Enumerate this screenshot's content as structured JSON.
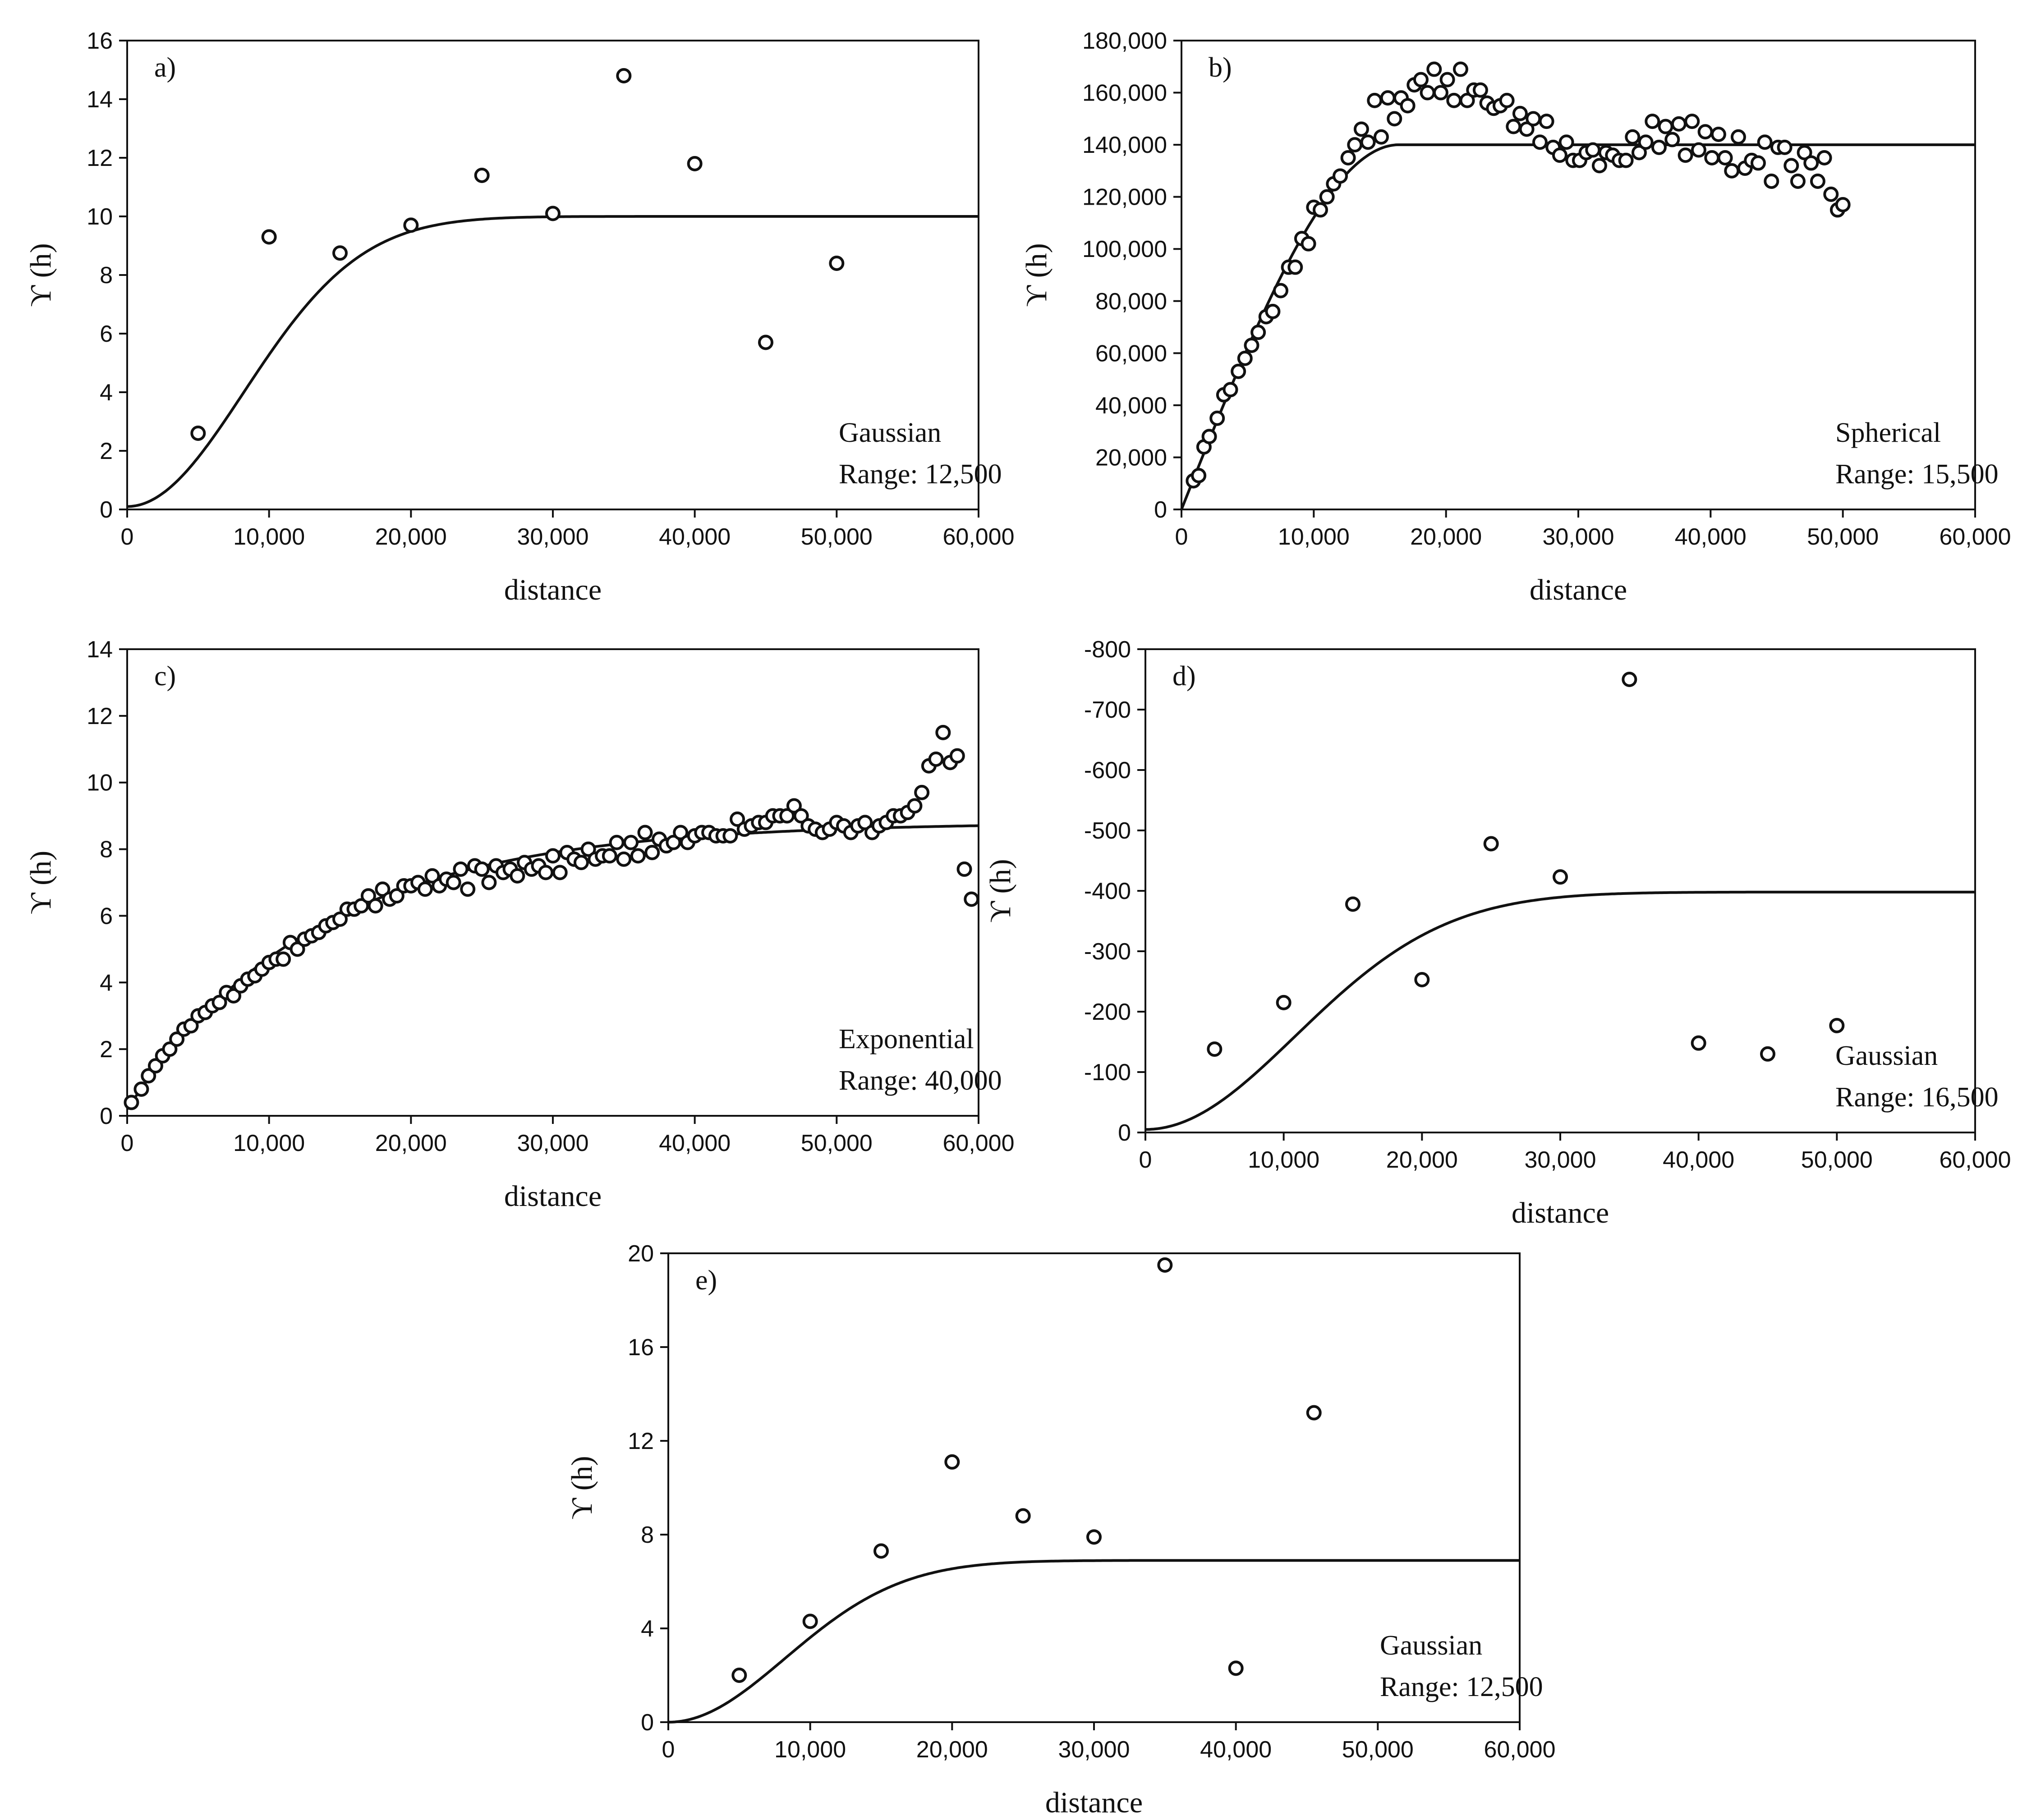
{
  "chart_data": [
    {
      "id": "a",
      "type": "scatter",
      "panel_label": "a)",
      "xlabel": "distance",
      "ylabel": "ϒ (h)",
      "xlim": [
        0,
        60000
      ],
      "ylim": [
        0,
        16
      ],
      "x_ticks": [
        0,
        10000,
        20000,
        30000,
        40000,
        50000,
        60000
      ],
      "x_tick_labels": [
        "0",
        "10,000",
        "20,000",
        "30,000",
        "40,000",
        "50,000",
        "60,000"
      ],
      "y_ticks": [
        0,
        2,
        4,
        6,
        8,
        10,
        12,
        14,
        16
      ],
      "y_tick_labels": [
        "0",
        "2",
        "4",
        "6",
        "8",
        "10",
        "12",
        "14",
        "16"
      ],
      "model": {
        "type": "gaussian",
        "nugget": 0.1,
        "sill": 10.0,
        "range": 12500
      },
      "annotation": [
        "Gaussian",
        "Range: 12,500"
      ],
      "annotation_position": "bottom-right",
      "points": [
        [
          5000,
          2.6
        ],
        [
          10000,
          9.3
        ],
        [
          15000,
          8.75
        ],
        [
          20000,
          9.7
        ],
        [
          25000,
          11.4
        ],
        [
          30000,
          10.1
        ],
        [
          35000,
          14.8
        ],
        [
          40000,
          11.8
        ],
        [
          45000,
          5.7
        ],
        [
          50000,
          8.4
        ]
      ]
    },
    {
      "id": "b",
      "type": "scatter",
      "panel_label": "b)",
      "xlabel": "distance",
      "ylabel": "ϒ (h)",
      "xlim": [
        0,
        60000
      ],
      "ylim": [
        0,
        180000
      ],
      "x_ticks": [
        0,
        10000,
        20000,
        30000,
        40000,
        50000,
        60000
      ],
      "x_tick_labels": [
        "0",
        "10,000",
        "20,000",
        "30,000",
        "40,000",
        "50,000",
        "60,000"
      ],
      "y_ticks": [
        0,
        20000,
        40000,
        60000,
        80000,
        100000,
        120000,
        140000,
        160000,
        180000
      ],
      "y_tick_labels": [
        "0",
        "20,000",
        "40,000",
        "60,000",
        "80,000",
        "100,000",
        "120,000",
        "140,000",
        "160,000",
        "180,000"
      ],
      "model": {
        "type": "spherical",
        "nugget": 0,
        "sill": 140000,
        "range": 15500
      },
      "annotation": [
        "Spherical",
        "Range: 15,500"
      ],
      "annotation_position": "bottom-right",
      "points": [
        [
          900,
          11000
        ],
        [
          1300,
          13000
        ],
        [
          1700,
          24000
        ],
        [
          2100,
          28000
        ],
        [
          2700,
          35000
        ],
        [
          3200,
          44000
        ],
        [
          3700,
          46000
        ],
        [
          4300,
          53000
        ],
        [
          4800,
          58000
        ],
        [
          5300,
          63000
        ],
        [
          5800,
          68000
        ],
        [
          6400,
          74000
        ],
        [
          6900,
          76000
        ],
        [
          7500,
          84000
        ],
        [
          8100,
          93000
        ],
        [
          8600,
          93000
        ],
        [
          9100,
          104000
        ],
        [
          9600,
          102000
        ],
        [
          10000,
          116000
        ],
        [
          10500,
          115000
        ],
        [
          11000,
          120000
        ],
        [
          11500,
          125000
        ],
        [
          12000,
          128000
        ],
        [
          12600,
          135000
        ],
        [
          13100,
          140000
        ],
        [
          13600,
          146000
        ],
        [
          14100,
          141000
        ],
        [
          14600,
          157000
        ],
        [
          15100,
          143000
        ],
        [
          15600,
          158000
        ],
        [
          16100,
          150000
        ],
        [
          16600,
          158000
        ],
        [
          17100,
          155000
        ],
        [
          17600,
          163000
        ],
        [
          18100,
          165000
        ],
        [
          18600,
          160000
        ],
        [
          19100,
          169000
        ],
        [
          19600,
          160000
        ],
        [
          20100,
          165000
        ],
        [
          20600,
          157000
        ],
        [
          21100,
          169000
        ],
        [
          21600,
          157000
        ],
        [
          22100,
          161000
        ],
        [
          22600,
          161000
        ],
        [
          23100,
          156000
        ],
        [
          23600,
          154000
        ],
        [
          24100,
          155000
        ],
        [
          24600,
          157000
        ],
        [
          25100,
          147000
        ],
        [
          25600,
          152000
        ],
        [
          26100,
          146000
        ],
        [
          26600,
          150000
        ],
        [
          27100,
          141000
        ],
        [
          27600,
          149000
        ],
        [
          28100,
          139000
        ],
        [
          28600,
          136000
        ],
        [
          29100,
          141000
        ],
        [
          29600,
          134000
        ],
        [
          30100,
          134000
        ],
        [
          30600,
          137000
        ],
        [
          31100,
          138000
        ],
        [
          31600,
          132000
        ],
        [
          32100,
          137000
        ],
        [
          32600,
          136000
        ],
        [
          33100,
          134000
        ],
        [
          33600,
          134000
        ],
        [
          34100,
          143000
        ],
        [
          34600,
          137000
        ],
        [
          35100,
          141000
        ],
        [
          35600,
          149000
        ],
        [
          36100,
          139000
        ],
        [
          36600,
          147000
        ],
        [
          37100,
          142000
        ],
        [
          37600,
          148000
        ],
        [
          38100,
          136000
        ],
        [
          38600,
          149000
        ],
        [
          39100,
          138000
        ],
        [
          39600,
          145000
        ],
        [
          40100,
          135000
        ],
        [
          40600,
          144000
        ],
        [
          41100,
          135000
        ],
        [
          41600,
          130000
        ],
        [
          42100,
          143000
        ],
        [
          42600,
          131000
        ],
        [
          43100,
          134000
        ],
        [
          43600,
          133000
        ],
        [
          44100,
          141000
        ],
        [
          44600,
          126000
        ],
        [
          45100,
          139000
        ],
        [
          45600,
          139000
        ],
        [
          46100,
          132000
        ],
        [
          46600,
          126000
        ],
        [
          47100,
          137000
        ],
        [
          47600,
          133000
        ],
        [
          48100,
          126000
        ],
        [
          48600,
          135000
        ],
        [
          49100,
          121000
        ],
        [
          49600,
          115000
        ],
        [
          50000,
          117000
        ]
      ]
    },
    {
      "id": "c",
      "type": "scatter",
      "panel_label": "c)",
      "xlabel": "distance",
      "ylabel": "ϒ (h)",
      "xlim": [
        0,
        60000
      ],
      "ylim": [
        0,
        14
      ],
      "x_ticks": [
        0,
        10000,
        20000,
        30000,
        40000,
        50000,
        60000
      ],
      "x_tick_labels": [
        "0",
        "10,000",
        "20,000",
        "30,000",
        "40,000",
        "50,000",
        "60,000"
      ],
      "y_ticks": [
        0,
        2,
        4,
        6,
        8,
        10,
        12,
        14
      ],
      "y_tick_labels": [
        "0",
        "2",
        "4",
        "6",
        "8",
        "10",
        "12",
        "14"
      ],
      "model": {
        "type": "exponential",
        "nugget": 0.2,
        "sill": 8.8,
        "range": 40000
      },
      "annotation": [
        "Exponential",
        "Range: 40,000"
      ],
      "annotation_position": "bottom-right",
      "points": [
        [
          300,
          0.4
        ],
        [
          1000,
          0.8
        ],
        [
          1500,
          1.2
        ],
        [
          2000,
          1.5
        ],
        [
          2500,
          1.8
        ],
        [
          3000,
          2.0
        ],
        [
          3500,
          2.3
        ],
        [
          4000,
          2.6
        ],
        [
          4500,
          2.7
        ],
        [
          5000,
          3.0
        ],
        [
          5500,
          3.1
        ],
        [
          6000,
          3.3
        ],
        [
          6500,
          3.4
        ],
        [
          7000,
          3.7
        ],
        [
          7500,
          3.6
        ],
        [
          8000,
          3.9
        ],
        [
          8500,
          4.1
        ],
        [
          9000,
          4.2
        ],
        [
          9500,
          4.4
        ],
        [
          10000,
          4.6
        ],
        [
          10500,
          4.7
        ],
        [
          11000,
          4.7
        ],
        [
          11500,
          5.2
        ],
        [
          12000,
          5.0
        ],
        [
          12500,
          5.3
        ],
        [
          13000,
          5.4
        ],
        [
          13500,
          5.5
        ],
        [
          14000,
          5.7
        ],
        [
          14500,
          5.8
        ],
        [
          15000,
          5.9
        ],
        [
          15500,
          6.2
        ],
        [
          16000,
          6.2
        ],
        [
          16500,
          6.3
        ],
        [
          17000,
          6.6
        ],
        [
          17500,
          6.3
        ],
        [
          18000,
          6.8
        ],
        [
          18500,
          6.5
        ],
        [
          19000,
          6.6
        ],
        [
          19500,
          6.9
        ],
        [
          20000,
          6.9
        ],
        [
          20500,
          7.0
        ],
        [
          21000,
          6.8
        ],
        [
          21500,
          7.2
        ],
        [
          22000,
          6.9
        ],
        [
          22500,
          7.1
        ],
        [
          23000,
          7.0
        ],
        [
          23500,
          7.4
        ],
        [
          24000,
          6.8
        ],
        [
          24500,
          7.5
        ],
        [
          25000,
          7.4
        ],
        [
          25500,
          7.0
        ],
        [
          26000,
          7.5
        ],
        [
          26500,
          7.3
        ],
        [
          27000,
          7.4
        ],
        [
          27500,
          7.2
        ],
        [
          28000,
          7.6
        ],
        [
          28500,
          7.4
        ],
        [
          29000,
          7.5
        ],
        [
          29500,
          7.3
        ],
        [
          30000,
          7.8
        ],
        [
          30500,
          7.3
        ],
        [
          31000,
          7.9
        ],
        [
          31500,
          7.7
        ],
        [
          32000,
          7.6
        ],
        [
          32500,
          8.0
        ],
        [
          33000,
          7.7
        ],
        [
          33500,
          7.8
        ],
        [
          34000,
          7.8
        ],
        [
          34500,
          8.2
        ],
        [
          35000,
          7.7
        ],
        [
          35500,
          8.2
        ],
        [
          36000,
          7.8
        ],
        [
          36500,
          8.5
        ],
        [
          37000,
          7.9
        ],
        [
          37500,
          8.3
        ],
        [
          38000,
          8.1
        ],
        [
          38500,
          8.2
        ],
        [
          39000,
          8.5
        ],
        [
          39500,
          8.2
        ],
        [
          40000,
          8.4
        ],
        [
          40500,
          8.5
        ],
        [
          41000,
          8.5
        ],
        [
          41500,
          8.4
        ],
        [
          42000,
          8.4
        ],
        [
          42500,
          8.4
        ],
        [
          43000,
          8.9
        ],
        [
          43500,
          8.6
        ],
        [
          44000,
          8.7
        ],
        [
          44500,
          8.8
        ],
        [
          45000,
          8.8
        ],
        [
          45500,
          9.0
        ],
        [
          46000,
          9.0
        ],
        [
          46500,
          9.0
        ],
        [
          47000,
          9.3
        ],
        [
          47500,
          9.0
        ],
        [
          48000,
          8.7
        ],
        [
          48500,
          8.6
        ],
        [
          49000,
          8.5
        ],
        [
          49500,
          8.6
        ],
        [
          50000,
          8.8
        ],
        [
          50500,
          8.7
        ],
        [
          51000,
          8.5
        ],
        [
          51500,
          8.7
        ],
        [
          52000,
          8.8
        ],
        [
          52500,
          8.5
        ],
        [
          53000,
          8.7
        ],
        [
          53500,
          8.8
        ],
        [
          54000,
          9.0
        ],
        [
          54500,
          9.0
        ],
        [
          55000,
          9.1
        ],
        [
          55500,
          9.3
        ],
        [
          56000,
          9.7
        ],
        [
          56500,
          10.5
        ],
        [
          57000,
          10.7
        ],
        [
          57500,
          11.5
        ],
        [
          58000,
          10.6
        ],
        [
          58500,
          10.8
        ],
        [
          59000,
          7.4
        ],
        [
          59500,
          6.5
        ]
      ]
    },
    {
      "id": "d",
      "type": "scatter",
      "panel_label": "d)",
      "xlabel": "distance",
      "ylabel": "ϒ (h)",
      "xlim": [
        0,
        60000
      ],
      "ylim": [
        0,
        -800
      ],
      "x_ticks": [
        0,
        10000,
        20000,
        30000,
        40000,
        50000,
        60000
      ],
      "x_tick_labels": [
        "0",
        "10,000",
        "20,000",
        "30,000",
        "40,000",
        "50,000",
        "60,000"
      ],
      "y_ticks": [
        0,
        -100,
        -200,
        -300,
        -400,
        -500,
        -600,
        -700,
        -800
      ],
      "y_tick_labels": [
        "0",
        "-100",
        "-200",
        "-300",
        "-400",
        "-500",
        "-600",
        "-700",
        "-800"
      ],
      "model": {
        "type": "gaussian",
        "nugget": -5,
        "sill": -398,
        "range": 16500
      },
      "annotation": [
        "Gaussian",
        "Range: 16,500"
      ],
      "annotation_position": "bottom-right",
      "points": [
        [
          5000,
          -138
        ],
        [
          10000,
          -215
        ],
        [
          15000,
          -378
        ],
        [
          20000,
          -253
        ],
        [
          25000,
          -478
        ],
        [
          30000,
          -423
        ],
        [
          35000,
          -750
        ],
        [
          40000,
          -148
        ],
        [
          45000,
          -130
        ],
        [
          50000,
          -177
        ]
      ]
    },
    {
      "id": "e",
      "type": "scatter",
      "panel_label": "e)",
      "xlabel": "distance",
      "ylabel": "ϒ (h)",
      "xlim": [
        0,
        60000
      ],
      "ylim": [
        0,
        20
      ],
      "x_ticks": [
        0,
        10000,
        20000,
        30000,
        40000,
        50000,
        60000
      ],
      "x_tick_labels": [
        "0",
        "10,000",
        "20,000",
        "30,000",
        "40,000",
        "50,000",
        "60,000"
      ],
      "y_ticks": [
        0,
        4,
        8,
        12,
        16,
        20
      ],
      "y_tick_labels": [
        "0",
        "4",
        "8",
        "12",
        "16",
        "20"
      ],
      "model": {
        "type": "gaussian",
        "nugget": 0,
        "sill": 6.9,
        "range": 12500
      },
      "annotation": [
        "Gaussian",
        "Range: 12,500"
      ],
      "annotation_position": "bottom-right",
      "points": [
        [
          5000,
          2.0
        ],
        [
          10000,
          4.3
        ],
        [
          15000,
          7.3
        ],
        [
          20000,
          11.1
        ],
        [
          25000,
          8.8
        ],
        [
          30000,
          7.9
        ],
        [
          35000,
          19.5
        ],
        [
          40000,
          2.3
        ],
        [
          45500,
          13.2
        ]
      ]
    }
  ]
}
